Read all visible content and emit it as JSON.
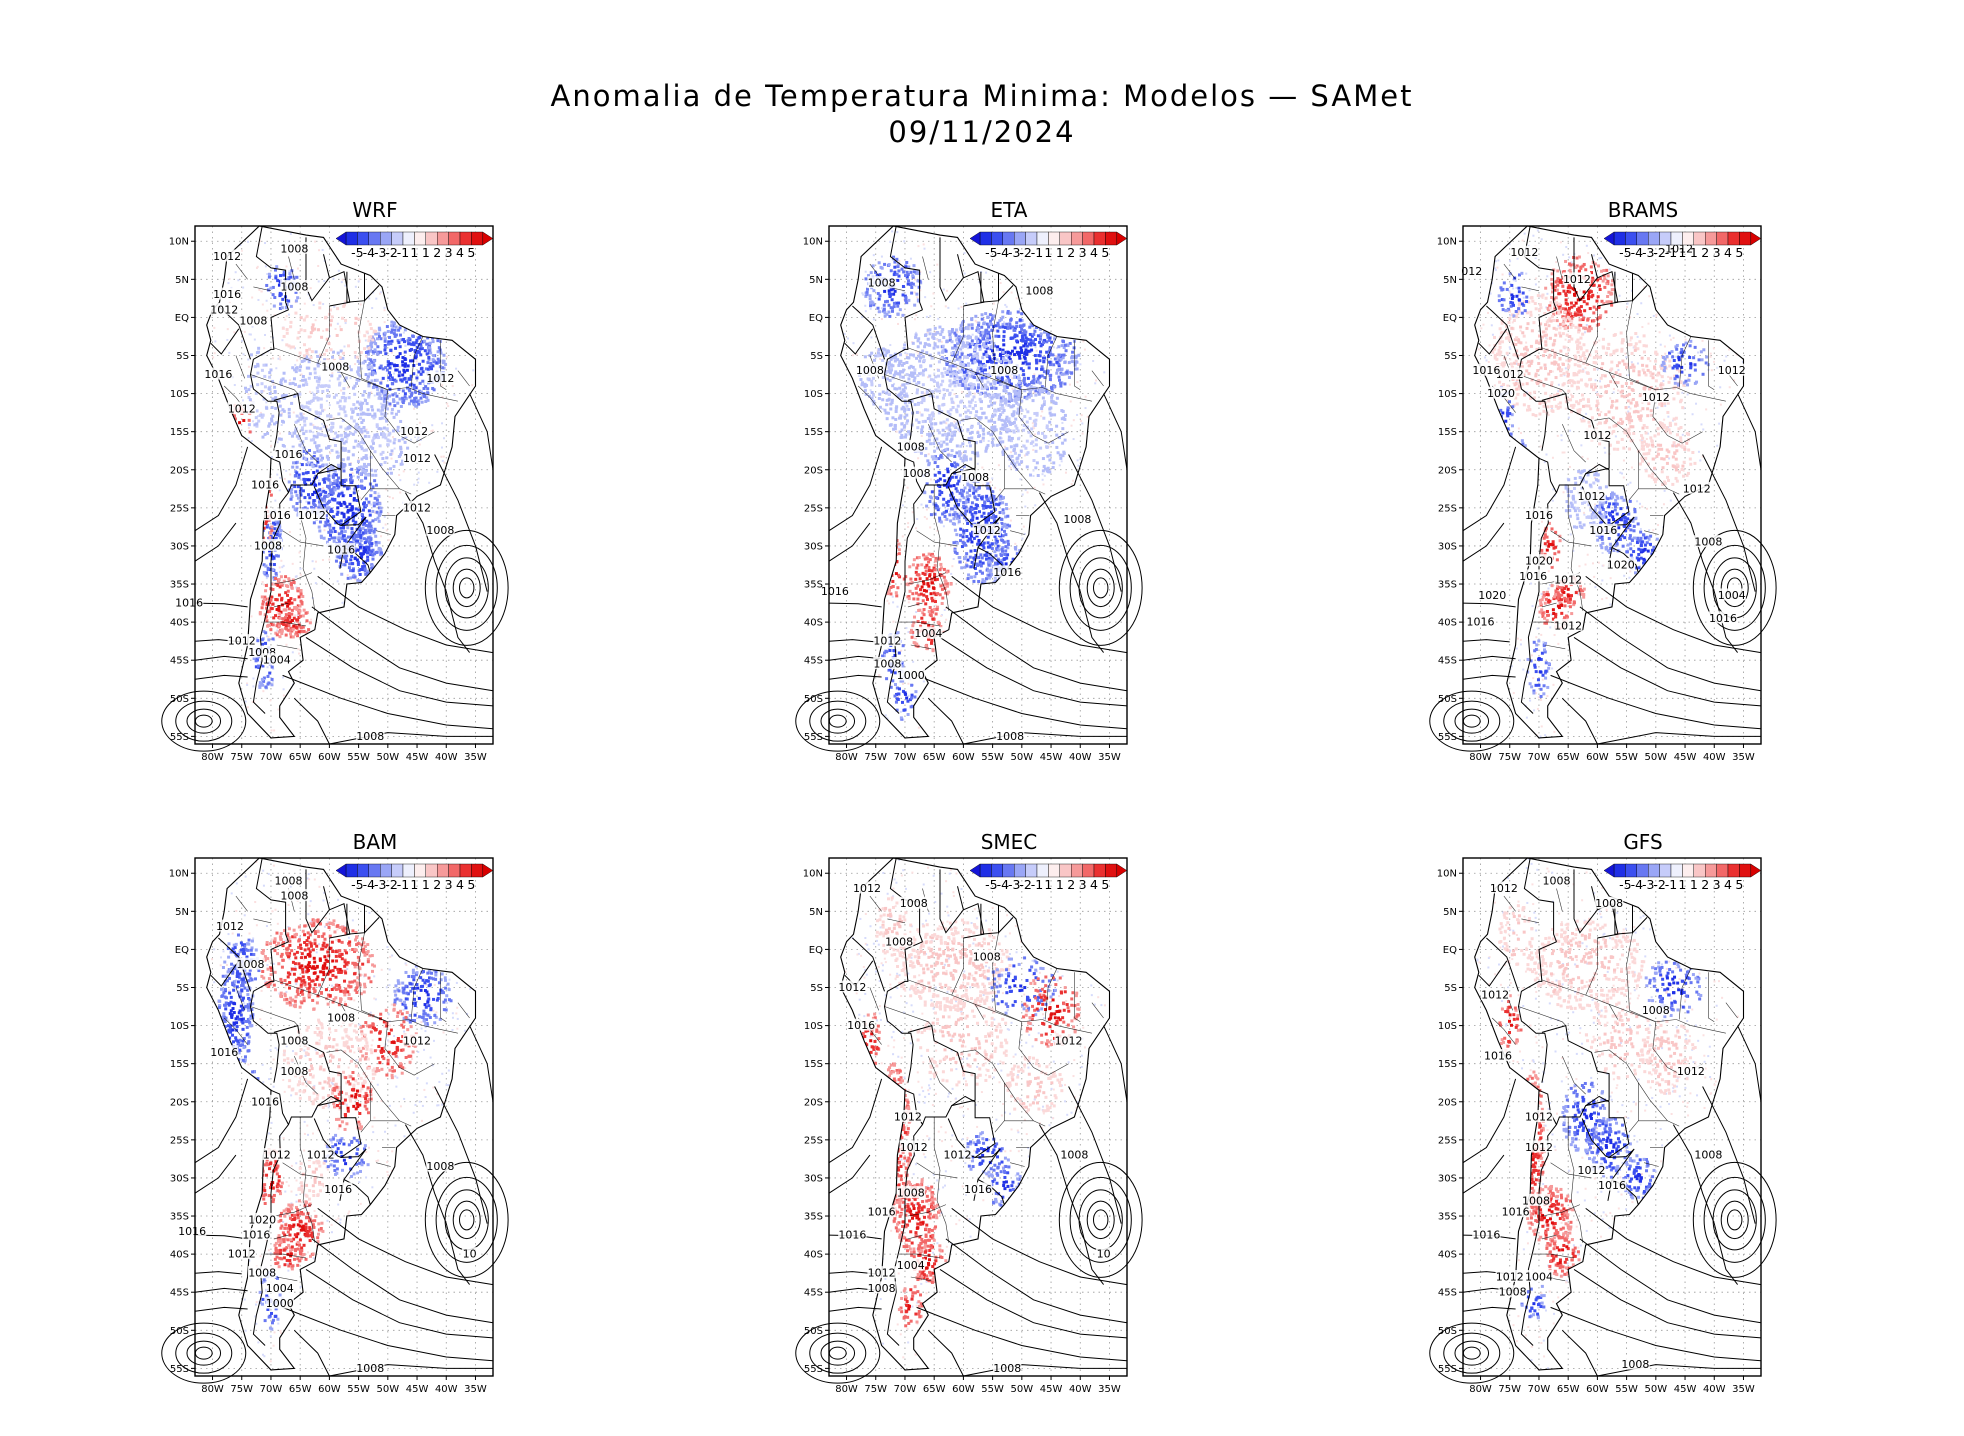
{
  "figure": {
    "title_line1": "Anomalia de Temperatura Minima: Modelos — SAMet",
    "title_line2": "09/11/2024"
  },
  "axes": {
    "lat_labels": [
      "10N",
      "5N",
      "EQ",
      "5S",
      "10S",
      "15S",
      "20S",
      "25S",
      "30S",
      "35S",
      "40S",
      "45S",
      "50S",
      "55S"
    ],
    "lon_labels": [
      "80W",
      "75W",
      "70W",
      "65W",
      "60W",
      "55W",
      "50W",
      "45W",
      "40W",
      "35W"
    ]
  },
  "colorbar": {
    "labels": [
      "-5",
      "-4",
      "-3",
      "-2",
      "-1",
      "1",
      "1",
      "2",
      "3",
      "4",
      "5"
    ],
    "colors": [
      "#1f2fe6",
      "#3b4ff0",
      "#6878f2",
      "#9aa6f6",
      "#c6ccfa",
      "#eef0fd",
      "#fdeeee",
      "#f9c6c6",
      "#f69a9a",
      "#f26868",
      "#ea3030",
      "#e01010"
    ]
  },
  "panels": [
    {
      "id": "wrf",
      "name": "WRF",
      "isobars": [
        {
          "t": "1012",
          "lon": -77.5,
          "lat": 8
        },
        {
          "t": "1016",
          "lon": -77.5,
          "lat": 3
        },
        {
          "t": "1012",
          "lon": -78,
          "lat": 1
        },
        {
          "t": "1008",
          "lon": -66,
          "lat": 9
        },
        {
          "t": "1008",
          "lon": -66,
          "lat": 4
        },
        {
          "t": "1008",
          "lon": -73,
          "lat": -0.5
        },
        {
          "t": "1008",
          "lon": -59,
          "lat": -6.5
        },
        {
          "t": "1012",
          "lon": -41,
          "lat": -8
        },
        {
          "t": "1016",
          "lon": -79,
          "lat": -7.5
        },
        {
          "t": "1012",
          "lon": -75,
          "lat": -12
        },
        {
          "t": "1012",
          "lon": -45.5,
          "lat": -15
        },
        {
          "t": "1016",
          "lon": -67,
          "lat": -18
        },
        {
          "t": "1012",
          "lon": -45,
          "lat": -18.5
        },
        {
          "t": "1016",
          "lon": -71,
          "lat": -22
        },
        {
          "t": "1012",
          "lon": -45,
          "lat": -25
        },
        {
          "t": "1016",
          "lon": -69,
          "lat": -26
        },
        {
          "t": "1012",
          "lon": -63,
          "lat": -26
        },
        {
          "t": "1008",
          "lon": -70.5,
          "lat": -30
        },
        {
          "t": "1016",
          "lon": -58,
          "lat": -30.5
        },
        {
          "t": "1008",
          "lon": -41,
          "lat": -28
        },
        {
          "t": "1016",
          "lon": -84,
          "lat": -37.5
        },
        {
          "t": "1012",
          "lon": -75,
          "lat": -42.5
        },
        {
          "t": "1008",
          "lon": -71.5,
          "lat": -44
        },
        {
          "t": "1004",
          "lon": -69,
          "lat": -45
        },
        {
          "t": "1008",
          "lon": -53,
          "lat": -55
        }
      ]
    },
    {
      "id": "eta",
      "name": "ETA",
      "isobars": [
        {
          "t": "1008",
          "lon": -74,
          "lat": 4.5
        },
        {
          "t": "1008",
          "lon": -47,
          "lat": 3.5
        },
        {
          "t": "1008",
          "lon": -76,
          "lat": -7
        },
        {
          "t": "1008",
          "lon": -53,
          "lat": -7
        },
        {
          "t": "1008",
          "lon": -69,
          "lat": -17
        },
        {
          "t": "1008",
          "lon": -68,
          "lat": -20.5
        },
        {
          "t": "1008",
          "lon": -58,
          "lat": -21
        },
        {
          "t": "1012",
          "lon": -56,
          "lat": -28
        },
        {
          "t": "1008",
          "lon": -40.5,
          "lat": -26.5
        },
        {
          "t": "1016",
          "lon": -52.5,
          "lat": -33.5
        },
        {
          "t": "1016",
          "lon": -82,
          "lat": -36
        },
        {
          "t": "1004",
          "lon": -66,
          "lat": -41.5
        },
        {
          "t": "1012",
          "lon": -73,
          "lat": -42.5
        },
        {
          "t": "1008",
          "lon": -73,
          "lat": -45.5
        },
        {
          "t": "1000",
          "lon": -69,
          "lat": -47
        },
        {
          "t": "1008",
          "lon": -52,
          "lat": -55
        }
      ]
    },
    {
      "id": "brams",
      "name": "BRAMS",
      "isobars": [
        {
          "t": "012",
          "lon": -81.5,
          "lat": 6
        },
        {
          "t": "1012",
          "lon": -72.5,
          "lat": 8.5
        },
        {
          "t": "1012",
          "lon": -46,
          "lat": 9
        },
        {
          "t": "1012",
          "lon": -63.5,
          "lat": 5
        },
        {
          "t": "1012",
          "lon": -75,
          "lat": -7.5
        },
        {
          "t": "1016",
          "lon": -79,
          "lat": -7
        },
        {
          "t": "1020",
          "lon": -76.5,
          "lat": -10
        },
        {
          "t": "1012",
          "lon": -37,
          "lat": -7
        },
        {
          "t": "1012",
          "lon": -50,
          "lat": -10.5
        },
        {
          "t": "1012",
          "lon": -60,
          "lat": -15.5
        },
        {
          "t": "1012",
          "lon": -43,
          "lat": -22.5
        },
        {
          "t": "1012",
          "lon": -61,
          "lat": -23.5
        },
        {
          "t": "1016",
          "lon": -70,
          "lat": -26
        },
        {
          "t": "1016",
          "lon": -59,
          "lat": -28
        },
        {
          "t": "1008",
          "lon": -41,
          "lat": -29.5
        },
        {
          "t": "1020",
          "lon": -70,
          "lat": -32
        },
        {
          "t": "1016",
          "lon": -71,
          "lat": -34
        },
        {
          "t": "1020",
          "lon": -56,
          "lat": -32.5
        },
        {
          "t": "1012",
          "lon": -65,
          "lat": -34.5
        },
        {
          "t": "1004",
          "lon": -37,
          "lat": -36.5
        },
        {
          "t": "1020",
          "lon": -78,
          "lat": -36.5
        },
        {
          "t": "1016",
          "lon": -80,
          "lat": -40
        },
        {
          "t": "1016",
          "lon": -38.5,
          "lat": -39.5
        },
        {
          "t": "1012",
          "lon": -65,
          "lat": -40.5
        }
      ]
    },
    {
      "id": "bam",
      "name": "BAM",
      "isobars": [
        {
          "t": "1008",
          "lon": -67,
          "lat": 9
        },
        {
          "t": "1008",
          "lon": -66,
          "lat": 7
        },
        {
          "t": "1012",
          "lon": -77,
          "lat": 3
        },
        {
          "t": "1008",
          "lon": -73.5,
          "lat": -2
        },
        {
          "t": "1008",
          "lon": -58,
          "lat": -9
        },
        {
          "t": "1012",
          "lon": -45,
          "lat": -12
        },
        {
          "t": "1016",
          "lon": -78,
          "lat": -13.5
        },
        {
          "t": "1008",
          "lon": -66,
          "lat": -12
        },
        {
          "t": "1008",
          "lon": -66,
          "lat": -16
        },
        {
          "t": "1016",
          "lon": -71,
          "lat": -20
        },
        {
          "t": "1012",
          "lon": -69,
          "lat": -27
        },
        {
          "t": "1012",
          "lon": -61.5,
          "lat": -27
        },
        {
          "t": "1008",
          "lon": -41,
          "lat": -28.5
        },
        {
          "t": "1016",
          "lon": -58.5,
          "lat": -31.5
        },
        {
          "t": "1020",
          "lon": -71.5,
          "lat": -35.5
        },
        {
          "t": "1016",
          "lon": -83.5,
          "lat": -37
        },
        {
          "t": "1016",
          "lon": -72.5,
          "lat": -37.5
        },
        {
          "t": "1012",
          "lon": -75,
          "lat": -40
        },
        {
          "t": "1008",
          "lon": -71.5,
          "lat": -42.5
        },
        {
          "t": "1004",
          "lon": -68.5,
          "lat": -44.5
        },
        {
          "t": "1000",
          "lon": -68.5,
          "lat": -46.5
        },
        {
          "t": "10",
          "lon": -36,
          "lat": -40
        },
        {
          "t": "1008",
          "lon": -53,
          "lat": -55
        }
      ]
    },
    {
      "id": "smec",
      "name": "SMEC",
      "isobars": [
        {
          "t": "1012",
          "lon": -76.5,
          "lat": 8
        },
        {
          "t": "1008",
          "lon": -68.5,
          "lat": 6
        },
        {
          "t": "1008",
          "lon": -71,
          "lat": 1
        },
        {
          "t": "1008",
          "lon": -56,
          "lat": -1
        },
        {
          "t": "1012",
          "lon": -79,
          "lat": -5
        },
        {
          "t": "1016",
          "lon": -77.5,
          "lat": -10
        },
        {
          "t": "1012",
          "lon": -42,
          "lat": -12
        },
        {
          "t": "1012",
          "lon": -69.5,
          "lat": -22
        },
        {
          "t": "1012",
          "lon": -68.5,
          "lat": -26
        },
        {
          "t": "1012",
          "lon": -61,
          "lat": -27
        },
        {
          "t": "1008",
          "lon": -41,
          "lat": -27
        },
        {
          "t": "1008",
          "lon": -69,
          "lat": -32
        },
        {
          "t": "1016",
          "lon": -57.5,
          "lat": -31.5
        },
        {
          "t": "1016",
          "lon": -74,
          "lat": -34.5
        },
        {
          "t": "1016",
          "lon": -79,
          "lat": -37.5
        },
        {
          "t": "1012",
          "lon": -74,
          "lat": -42.5
        },
        {
          "t": "1008",
          "lon": -74,
          "lat": -44.5
        },
        {
          "t": "1004",
          "lon": -69,
          "lat": -41.5
        },
        {
          "t": "10",
          "lon": -36,
          "lat": -40
        },
        {
          "t": "1008",
          "lon": -52.5,
          "lat": -55
        }
      ]
    },
    {
      "id": "gfs",
      "name": "GFS",
      "isobars": [
        {
          "t": "1008",
          "lon": -67,
          "lat": 9
        },
        {
          "t": "1012",
          "lon": -76,
          "lat": 8
        },
        {
          "t": "1008",
          "lon": -58,
          "lat": 6
        },
        {
          "t": "1012",
          "lon": -77.5,
          "lat": -6
        },
        {
          "t": "1008",
          "lon": -50,
          "lat": -8
        },
        {
          "t": "1016",
          "lon": -77,
          "lat": -14
        },
        {
          "t": "1012",
          "lon": -44,
          "lat": -16
        },
        {
          "t": "1012",
          "lon": -70,
          "lat": -22
        },
        {
          "t": "1012",
          "lon": -70,
          "lat": -26
        },
        {
          "t": "1012",
          "lon": -61,
          "lat": -29
        },
        {
          "t": "1008",
          "lon": -41,
          "lat": -27
        },
        {
          "t": "1016",
          "lon": -57.5,
          "lat": -31
        },
        {
          "t": "1016",
          "lon": -74,
          "lat": -34.5
        },
        {
          "t": "1008",
          "lon": -70.5,
          "lat": -33
        },
        {
          "t": "1016",
          "lon": -79,
          "lat": -37.5
        },
        {
          "t": "1004",
          "lon": -70,
          "lat": -43
        },
        {
          "t": "1012",
          "lon": -75,
          "lat": -43
        },
        {
          "t": "1008",
          "lon": -74.5,
          "lat": -45
        },
        {
          "t": "1008",
          "lon": -53.5,
          "lat": -54.5
        }
      ]
    }
  ]
}
